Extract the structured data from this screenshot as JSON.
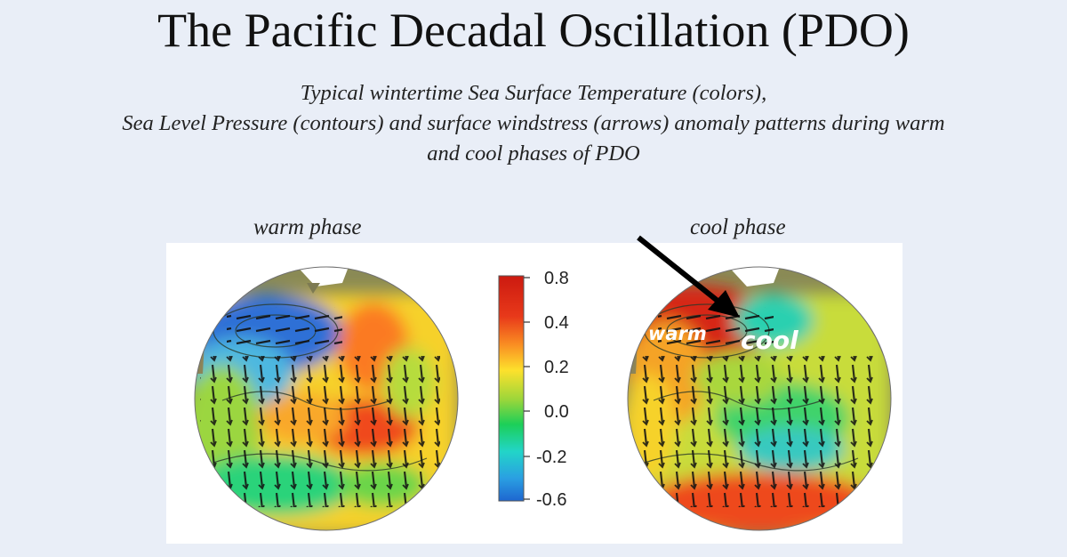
{
  "title": "The Pacific Decadal Oscillation (PDO)",
  "subtitle": {
    "line1": "Typical wintertime Sea Surface Temperature (colors),",
    "line2": "Sea Level Pressure (contours) and surface windstress (arrows) anomaly patterns during warm",
    "line3": "and cool phases of PDO"
  },
  "panels": {
    "left_label": "warm phase",
    "right_label": "cool phase"
  },
  "colorbar": {
    "ticks": [
      "0.8",
      "0.4",
      "0.2",
      "0.0",
      "-0.2",
      "-0.6"
    ],
    "colors": [
      "#d21a10",
      "#ec3e18",
      "#fb8d22",
      "#fde02a",
      "#8fd43a",
      "#1bcf58",
      "#22d6c8",
      "#1e7fd8"
    ]
  },
  "annotations": {
    "warm_label": "warm",
    "cool_label": "cool"
  }
}
